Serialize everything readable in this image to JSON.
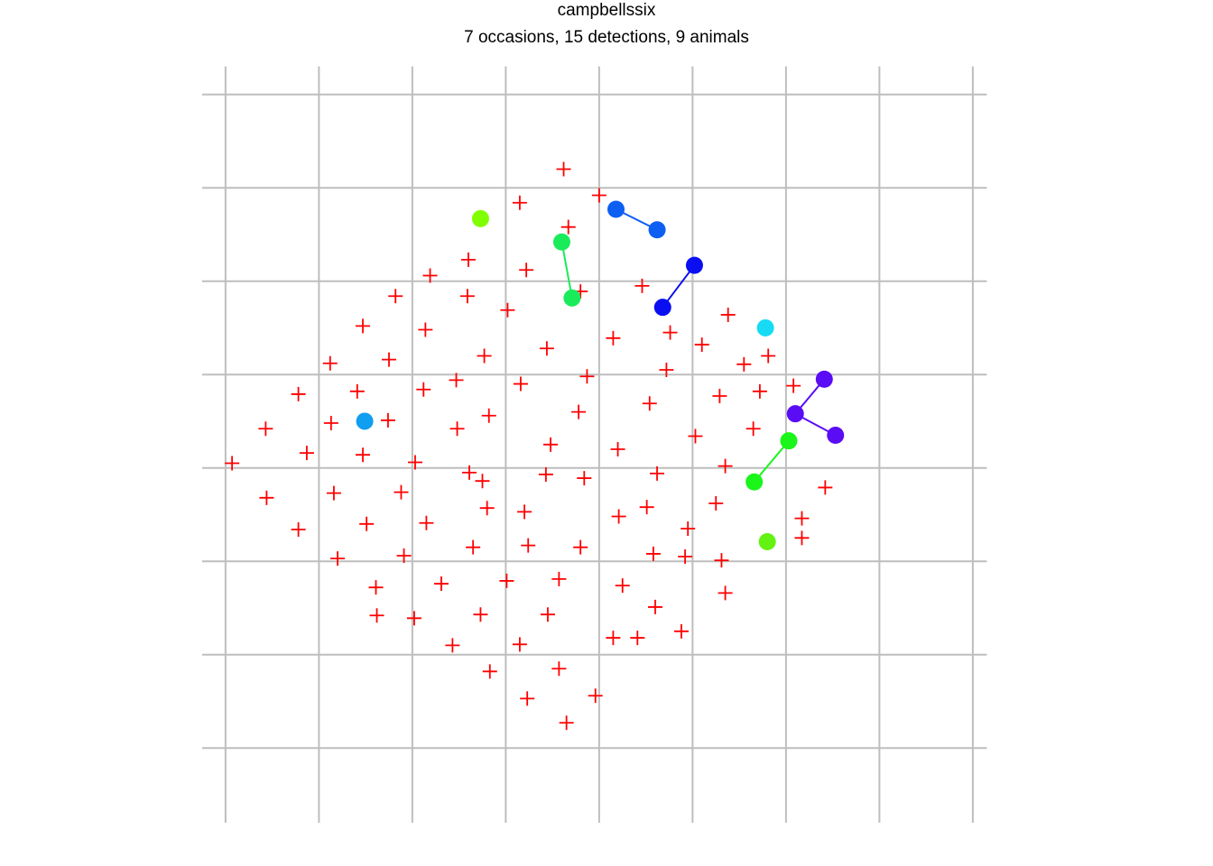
{
  "title": "campbellssix",
  "subtitle": "7 occasions, 15 detections, 9 animals",
  "chart_data": {
    "type": "scatter",
    "title": "campbellssix",
    "subtitle": "7 occasions, 15 detections, 9 animals",
    "xlabel": "",
    "ylabel": "",
    "xlim": [
      0,
      8.4
    ],
    "ylim": [
      0,
      8.1
    ],
    "grid": true,
    "xticks": [
      0.25,
      1.25,
      2.25,
      3.25,
      4.25,
      5.25,
      6.25,
      7.25,
      8.25
    ],
    "yticks": [
      0.8,
      1.8,
      2.8,
      3.8,
      4.8,
      5.8,
      6.8,
      7.8
    ],
    "grid_color": "#bebebe",
    "trap_color": "#ff0000",
    "traps": [
      [
        3.87,
        7.0
      ],
      [
        4.25,
        6.72
      ],
      [
        3.4,
        6.64
      ],
      [
        3.92,
        6.38
      ],
      [
        2.85,
        6.03
      ],
      [
        3.47,
        5.92
      ],
      [
        2.44,
        5.86
      ],
      [
        4.05,
        5.69
      ],
      [
        4.71,
        5.75
      ],
      [
        2.07,
        5.64
      ],
      [
        2.84,
        5.64
      ],
      [
        3.27,
        5.49
      ],
      [
        1.72,
        5.32
      ],
      [
        2.39,
        5.28
      ],
      [
        4.4,
        5.19
      ],
      [
        5.01,
        5.25
      ],
      [
        5.63,
        5.44
      ],
      [
        1.37,
        4.92
      ],
      [
        2.0,
        4.96
      ],
      [
        3.02,
        5.0
      ],
      [
        3.69,
        5.08
      ],
      [
        6.06,
        5.0
      ],
      [
        2.72,
        4.74
      ],
      [
        5.35,
        5.12
      ],
      [
        4.97,
        4.85
      ],
      [
        5.8,
        4.91
      ],
      [
        1.03,
        4.59
      ],
      [
        1.66,
        4.62
      ],
      [
        2.37,
        4.64
      ],
      [
        3.41,
        4.7
      ],
      [
        4.12,
        4.78
      ],
      [
        5.97,
        4.62
      ],
      [
        6.33,
        4.68
      ],
      [
        0.68,
        4.22
      ],
      [
        1.38,
        4.28
      ],
      [
        3.07,
        4.36
      ],
      [
        4.03,
        4.4
      ],
      [
        4.79,
        4.49
      ],
      [
        5.54,
        4.57
      ],
      [
        5.9,
        4.22
      ],
      [
        1.99,
        4.31
      ],
      [
        2.73,
        4.22
      ],
      [
        3.73,
        4.05
      ],
      [
        4.45,
        4.0
      ],
      [
        5.28,
        4.14
      ],
      [
        1.72,
        3.94
      ],
      [
        2.28,
        3.86
      ],
      [
        0.32,
        3.85
      ],
      [
        1.12,
        3.96
      ],
      [
        3.0,
        3.66
      ],
      [
        3.68,
        3.73
      ],
      [
        4.09,
        3.69
      ],
      [
        4.87,
        3.74
      ],
      [
        5.6,
        3.82
      ],
      [
        6.67,
        3.59
      ],
      [
        0.69,
        3.48
      ],
      [
        1.41,
        3.53
      ],
      [
        2.86,
        3.75
      ],
      [
        2.13,
        3.54
      ],
      [
        4.76,
        3.38
      ],
      [
        5.5,
        3.42
      ],
      [
        6.42,
        3.26
      ],
      [
        1.03,
        3.14
      ],
      [
        1.76,
        3.2
      ],
      [
        2.4,
        3.21
      ],
      [
        3.05,
        3.37
      ],
      [
        3.45,
        3.33
      ],
      [
        4.46,
        3.28
      ],
      [
        5.2,
        3.15
      ],
      [
        6.42,
        3.05
      ],
      [
        1.45,
        2.83
      ],
      [
        2.16,
        2.86
      ],
      [
        2.9,
        2.95
      ],
      [
        3.49,
        2.97
      ],
      [
        4.05,
        2.95
      ],
      [
        4.83,
        2.88
      ],
      [
        5.56,
        2.81
      ],
      [
        3.82,
        2.61
      ],
      [
        4.5,
        2.54
      ],
      [
        5.17,
        2.85
      ],
      [
        1.86,
        2.52
      ],
      [
        2.56,
        2.56
      ],
      [
        3.26,
        2.59
      ],
      [
        4.85,
        2.31
      ],
      [
        5.6,
        2.46
      ],
      [
        2.27,
        2.19
      ],
      [
        2.98,
        2.23
      ],
      [
        3.7,
        2.23
      ],
      [
        1.87,
        2.22
      ],
      [
        4.4,
        1.98
      ],
      [
        5.13,
        2.05
      ],
      [
        2.68,
        1.9
      ],
      [
        3.4,
        1.91
      ],
      [
        4.66,
        1.98
      ],
      [
        3.08,
        1.62
      ],
      [
        3.82,
        1.65
      ],
      [
        3.48,
        1.33
      ],
      [
        4.21,
        1.36
      ],
      [
        3.9,
        1.07
      ]
    ],
    "animals": [
      {
        "color": "#80ff00",
        "points": [
          [
            2.98,
            6.47
          ]
        ]
      },
      {
        "color": "#0d5ff2",
        "points": [
          [
            4.43,
            6.57
          ],
          [
            4.87,
            6.35
          ]
        ]
      },
      {
        "color": "#1aeb5a",
        "points": [
          [
            3.85,
            6.22
          ],
          [
            3.96,
            5.62
          ]
        ]
      },
      {
        "color": "#0a0ff2",
        "points": [
          [
            5.27,
            5.97
          ],
          [
            4.93,
            5.52
          ]
        ]
      },
      {
        "color": "#17dbf5",
        "points": [
          [
            6.03,
            5.3
          ]
        ]
      },
      {
        "color": "#5a0cf5",
        "points": [
          [
            6.66,
            4.75
          ],
          [
            6.35,
            4.38
          ],
          [
            6.78,
            4.15
          ]
        ]
      },
      {
        "color": "#0f9ef0",
        "points": [
          [
            1.74,
            4.3
          ]
        ]
      },
      {
        "color": "#1af51a",
        "points": [
          [
            6.28,
            4.09
          ],
          [
            5.91,
            3.65
          ]
        ]
      },
      {
        "color": "#63f211",
        "points": [
          [
            6.05,
            3.01
          ]
        ]
      }
    ]
  }
}
